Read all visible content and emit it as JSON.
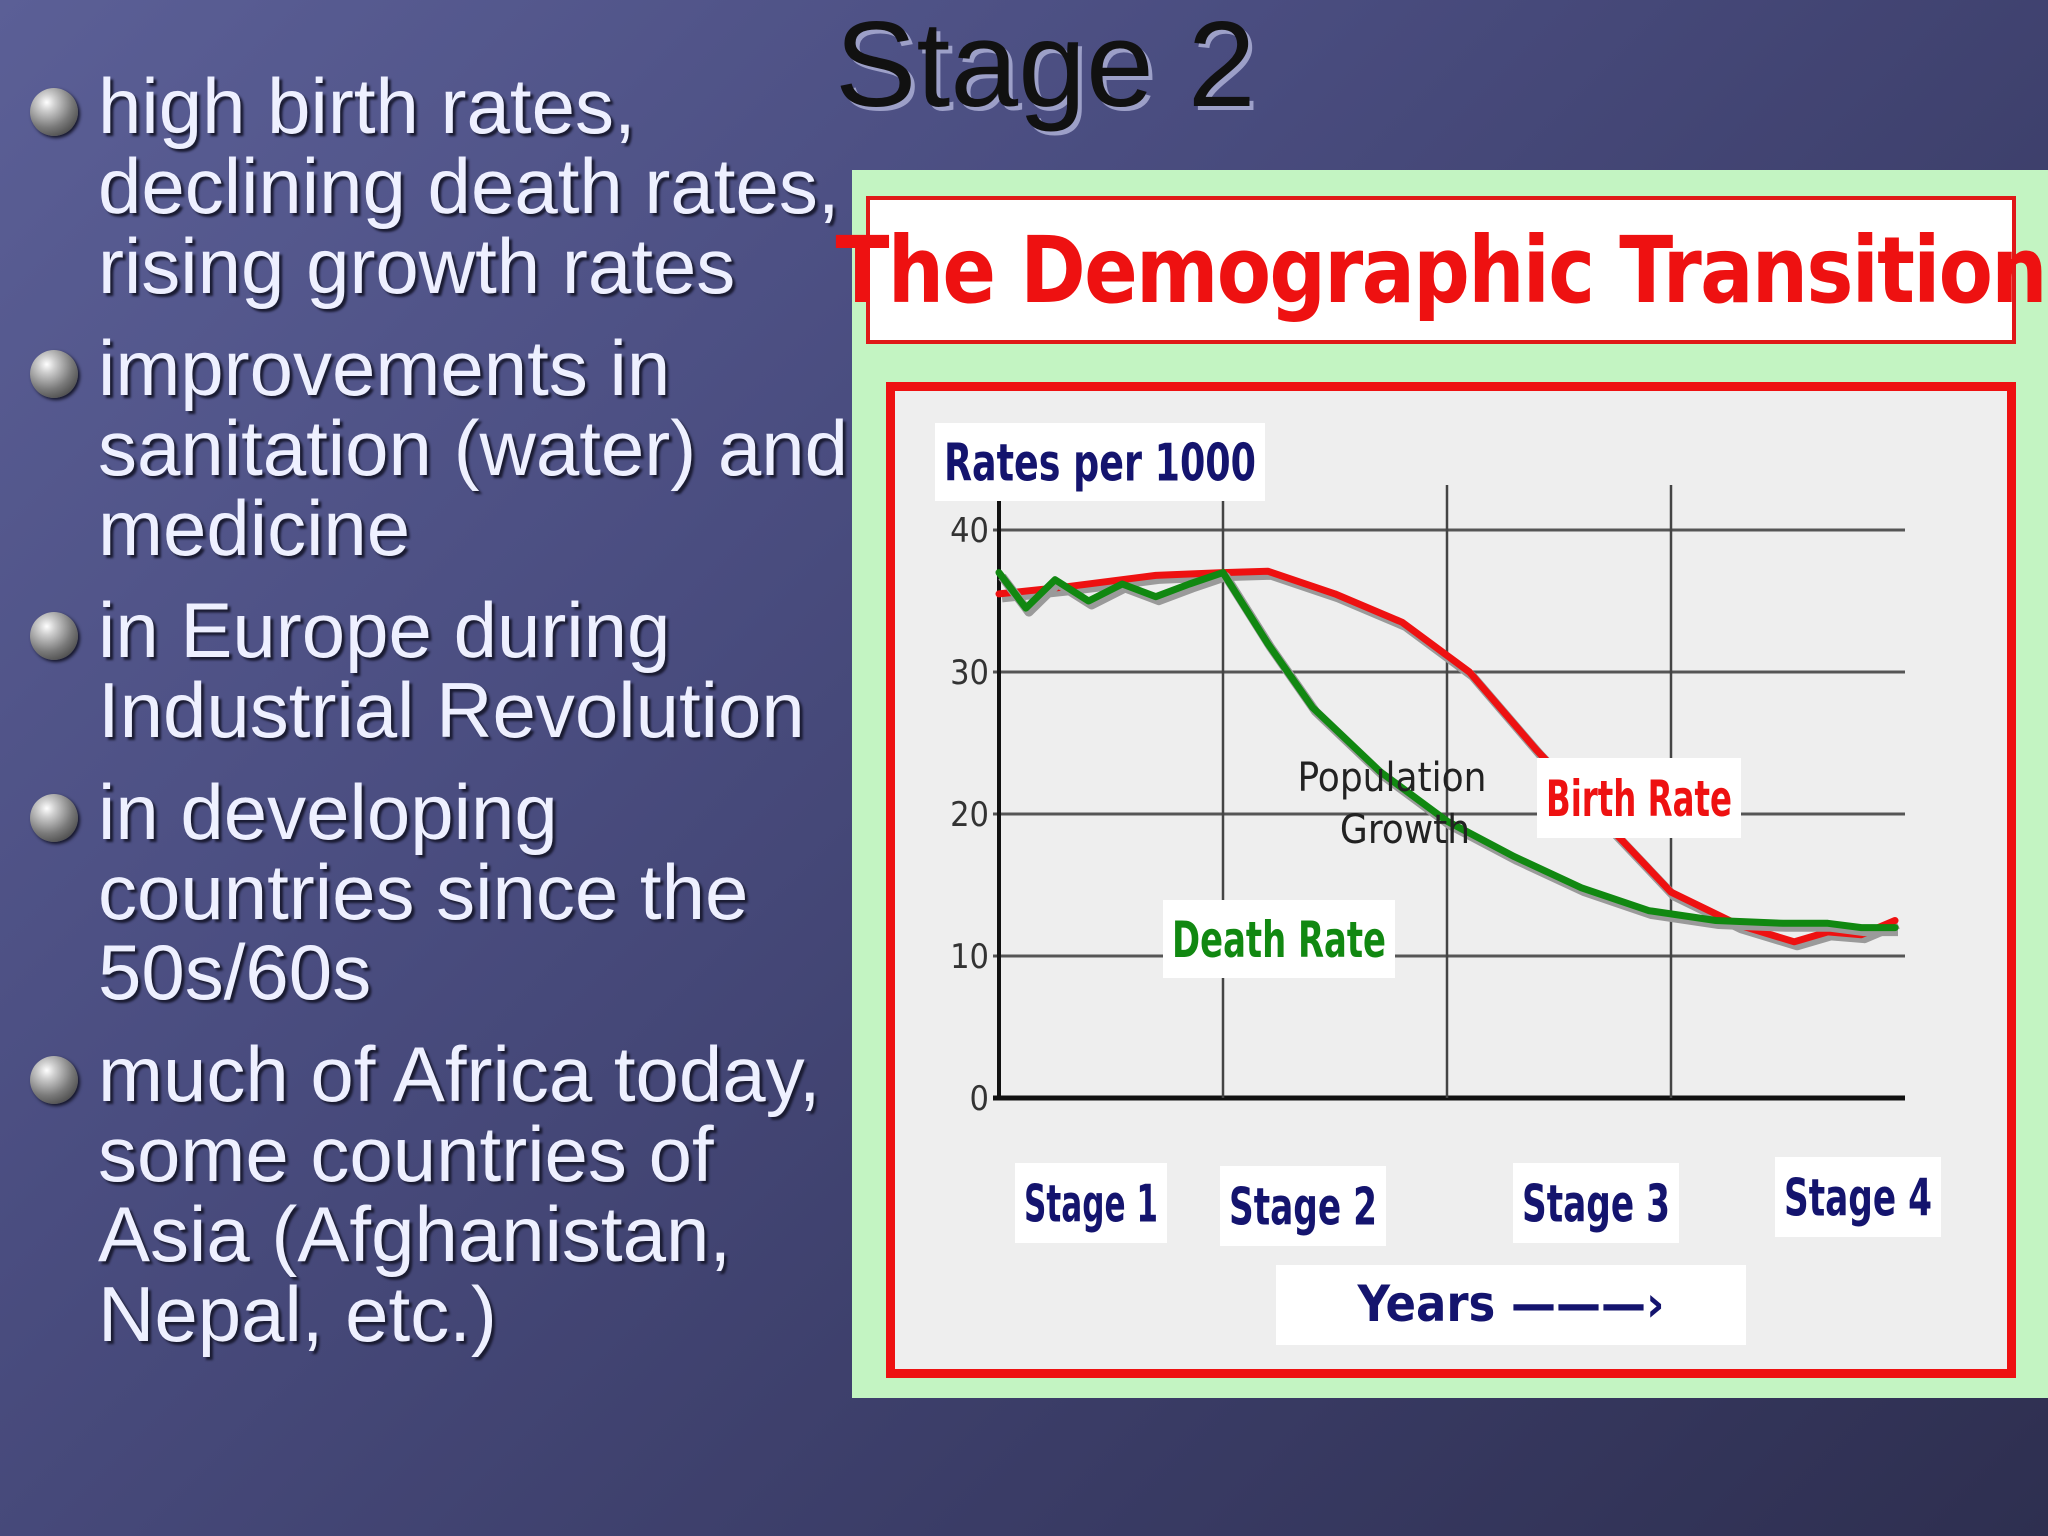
{
  "slide": {
    "title": "Stage 2",
    "bullets": [
      "high birth rates, declining death rates, rising growth rates",
      "improvements in sanitation (water) and medicine",
      "in Europe during Industrial Revolution",
      "in developing countries since the 50s/60s",
      "much of Africa today, some countries of Asia (Afghanistan, Nepal, etc.)"
    ]
  },
  "colors": {
    "birth_rate": "#ee1111",
    "death_rate": "#118811",
    "figure_background": "#c3f4c2",
    "frame": "#ee1111"
  },
  "chart_data": {
    "type": "line",
    "title": "The Demographic Transition",
    "ylabel": "Rates per 1000",
    "xlabel": "Years",
    "xlabel_arrow": "———›",
    "ylim": [
      0,
      40
    ],
    "yticks": [
      0,
      10,
      20,
      30,
      40
    ],
    "xlim": [
      0,
      4
    ],
    "stages": [
      "Stage 1",
      "Stage 2",
      "Stage 3",
      "Stage 4"
    ],
    "grid": true,
    "annotation": [
      "Population",
      "Growth"
    ],
    "series": [
      {
        "name": "Birth Rate",
        "color": "#ee1111",
        "points": [
          [
            0,
            35.5
          ],
          [
            0.3,
            36
          ],
          [
            0.7,
            36.8
          ],
          [
            1,
            37
          ],
          [
            1.2,
            37.1
          ],
          [
            1.5,
            35.5
          ],
          [
            1.8,
            33.5
          ],
          [
            2.1,
            30
          ],
          [
            2.4,
            24.5
          ],
          [
            2.7,
            19.5
          ],
          [
            3,
            14.5
          ],
          [
            3.3,
            12.2
          ],
          [
            3.55,
            11
          ],
          [
            3.7,
            11.7
          ],
          [
            3.85,
            11.5
          ],
          [
            4,
            12.5
          ]
        ]
      },
      {
        "name": "Death Rate",
        "color": "#118811",
        "points": [
          [
            0,
            37
          ],
          [
            0.12,
            34.5
          ],
          [
            0.25,
            36.5
          ],
          [
            0.4,
            35
          ],
          [
            0.55,
            36.2
          ],
          [
            0.7,
            35.3
          ],
          [
            0.85,
            36.2
          ],
          [
            1,
            37
          ],
          [
            1.2,
            32
          ],
          [
            1.4,
            27.5
          ],
          [
            1.7,
            23
          ],
          [
            2,
            19.5
          ],
          [
            2.3,
            17
          ],
          [
            2.6,
            14.8
          ],
          [
            2.9,
            13.2
          ],
          [
            3.2,
            12.5
          ],
          [
            3.5,
            12.3
          ],
          [
            3.7,
            12.3
          ],
          [
            3.85,
            12
          ],
          [
            4,
            12
          ]
        ]
      }
    ]
  }
}
